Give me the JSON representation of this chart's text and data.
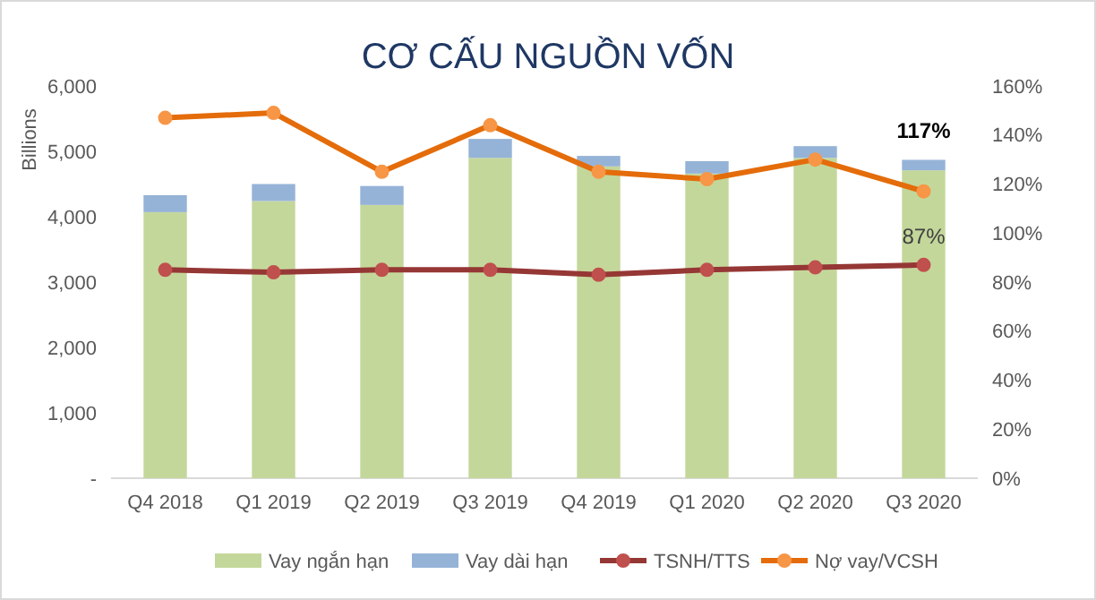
{
  "chart_data": {
    "type": "bar",
    "title": "CƠ CẤU NGUỒN VỐN",
    "ylabel": "Billions",
    "stacked": true,
    "legend": "bottom",
    "marker": "circle",
    "grid": false,
    "categories": [
      "Q4 2018",
      "Q1 2019",
      "Q2 2019",
      "Q3 2019",
      "Q4 2019",
      "Q1 2020",
      "Q2 2020",
      "Q3 2020"
    ],
    "ylim": [
      0,
      6000
    ],
    "yticks": [
      {
        "value": 0,
        "label": "-"
      },
      {
        "value": 1000,
        "label": "1,000"
      },
      {
        "value": 2000,
        "label": "2,000"
      },
      {
        "value": 3000,
        "label": "3,000"
      },
      {
        "value": 4000,
        "label": "4,000"
      },
      {
        "value": 5000,
        "label": "5,000"
      },
      {
        "value": 6000,
        "label": "6,000"
      }
    ],
    "y2lim": [
      0,
      160
    ],
    "y2ticks": [
      {
        "value": 0,
        "label": "0%"
      },
      {
        "value": 20,
        "label": "20%"
      },
      {
        "value": 40,
        "label": "40%"
      },
      {
        "value": 60,
        "label": "60%"
      },
      {
        "value": 80,
        "label": "80%"
      },
      {
        "value": 100,
        "label": "100%"
      },
      {
        "value": 120,
        "label": "120%"
      },
      {
        "value": 140,
        "label": "140%"
      },
      {
        "value": 160,
        "label": "160%"
      }
    ],
    "series": [
      {
        "name": "Vay ngắn hạn",
        "color": "#c4d79b",
        "values": [
          4070,
          4240,
          4180,
          4900,
          4770,
          4660,
          4900,
          4710
        ]
      },
      {
        "name": "Vay dài hạn",
        "color": "#95b3d7",
        "values": [
          260,
          260,
          290,
          290,
          160,
          190,
          180,
          160
        ]
      },
      {
        "name": "TSNH/TTS",
        "type": "line",
        "axis": "y2",
        "color": "#953735",
        "values": [
          85,
          84,
          85,
          85,
          83,
          85,
          86,
          87
        ],
        "value_labels": [
          null,
          null,
          null,
          null,
          null,
          null,
          null,
          "87%"
        ]
      },
      {
        "name": "Nợ vay/VCSH",
        "type": "line",
        "axis": "y2",
        "color": "#e46c0a",
        "values": [
          147,
          149,
          125,
          144,
          125,
          122,
          130,
          117
        ],
        "value_labels": [
          null,
          null,
          null,
          null,
          null,
          null,
          null,
          "117%"
        ]
      }
    ]
  }
}
